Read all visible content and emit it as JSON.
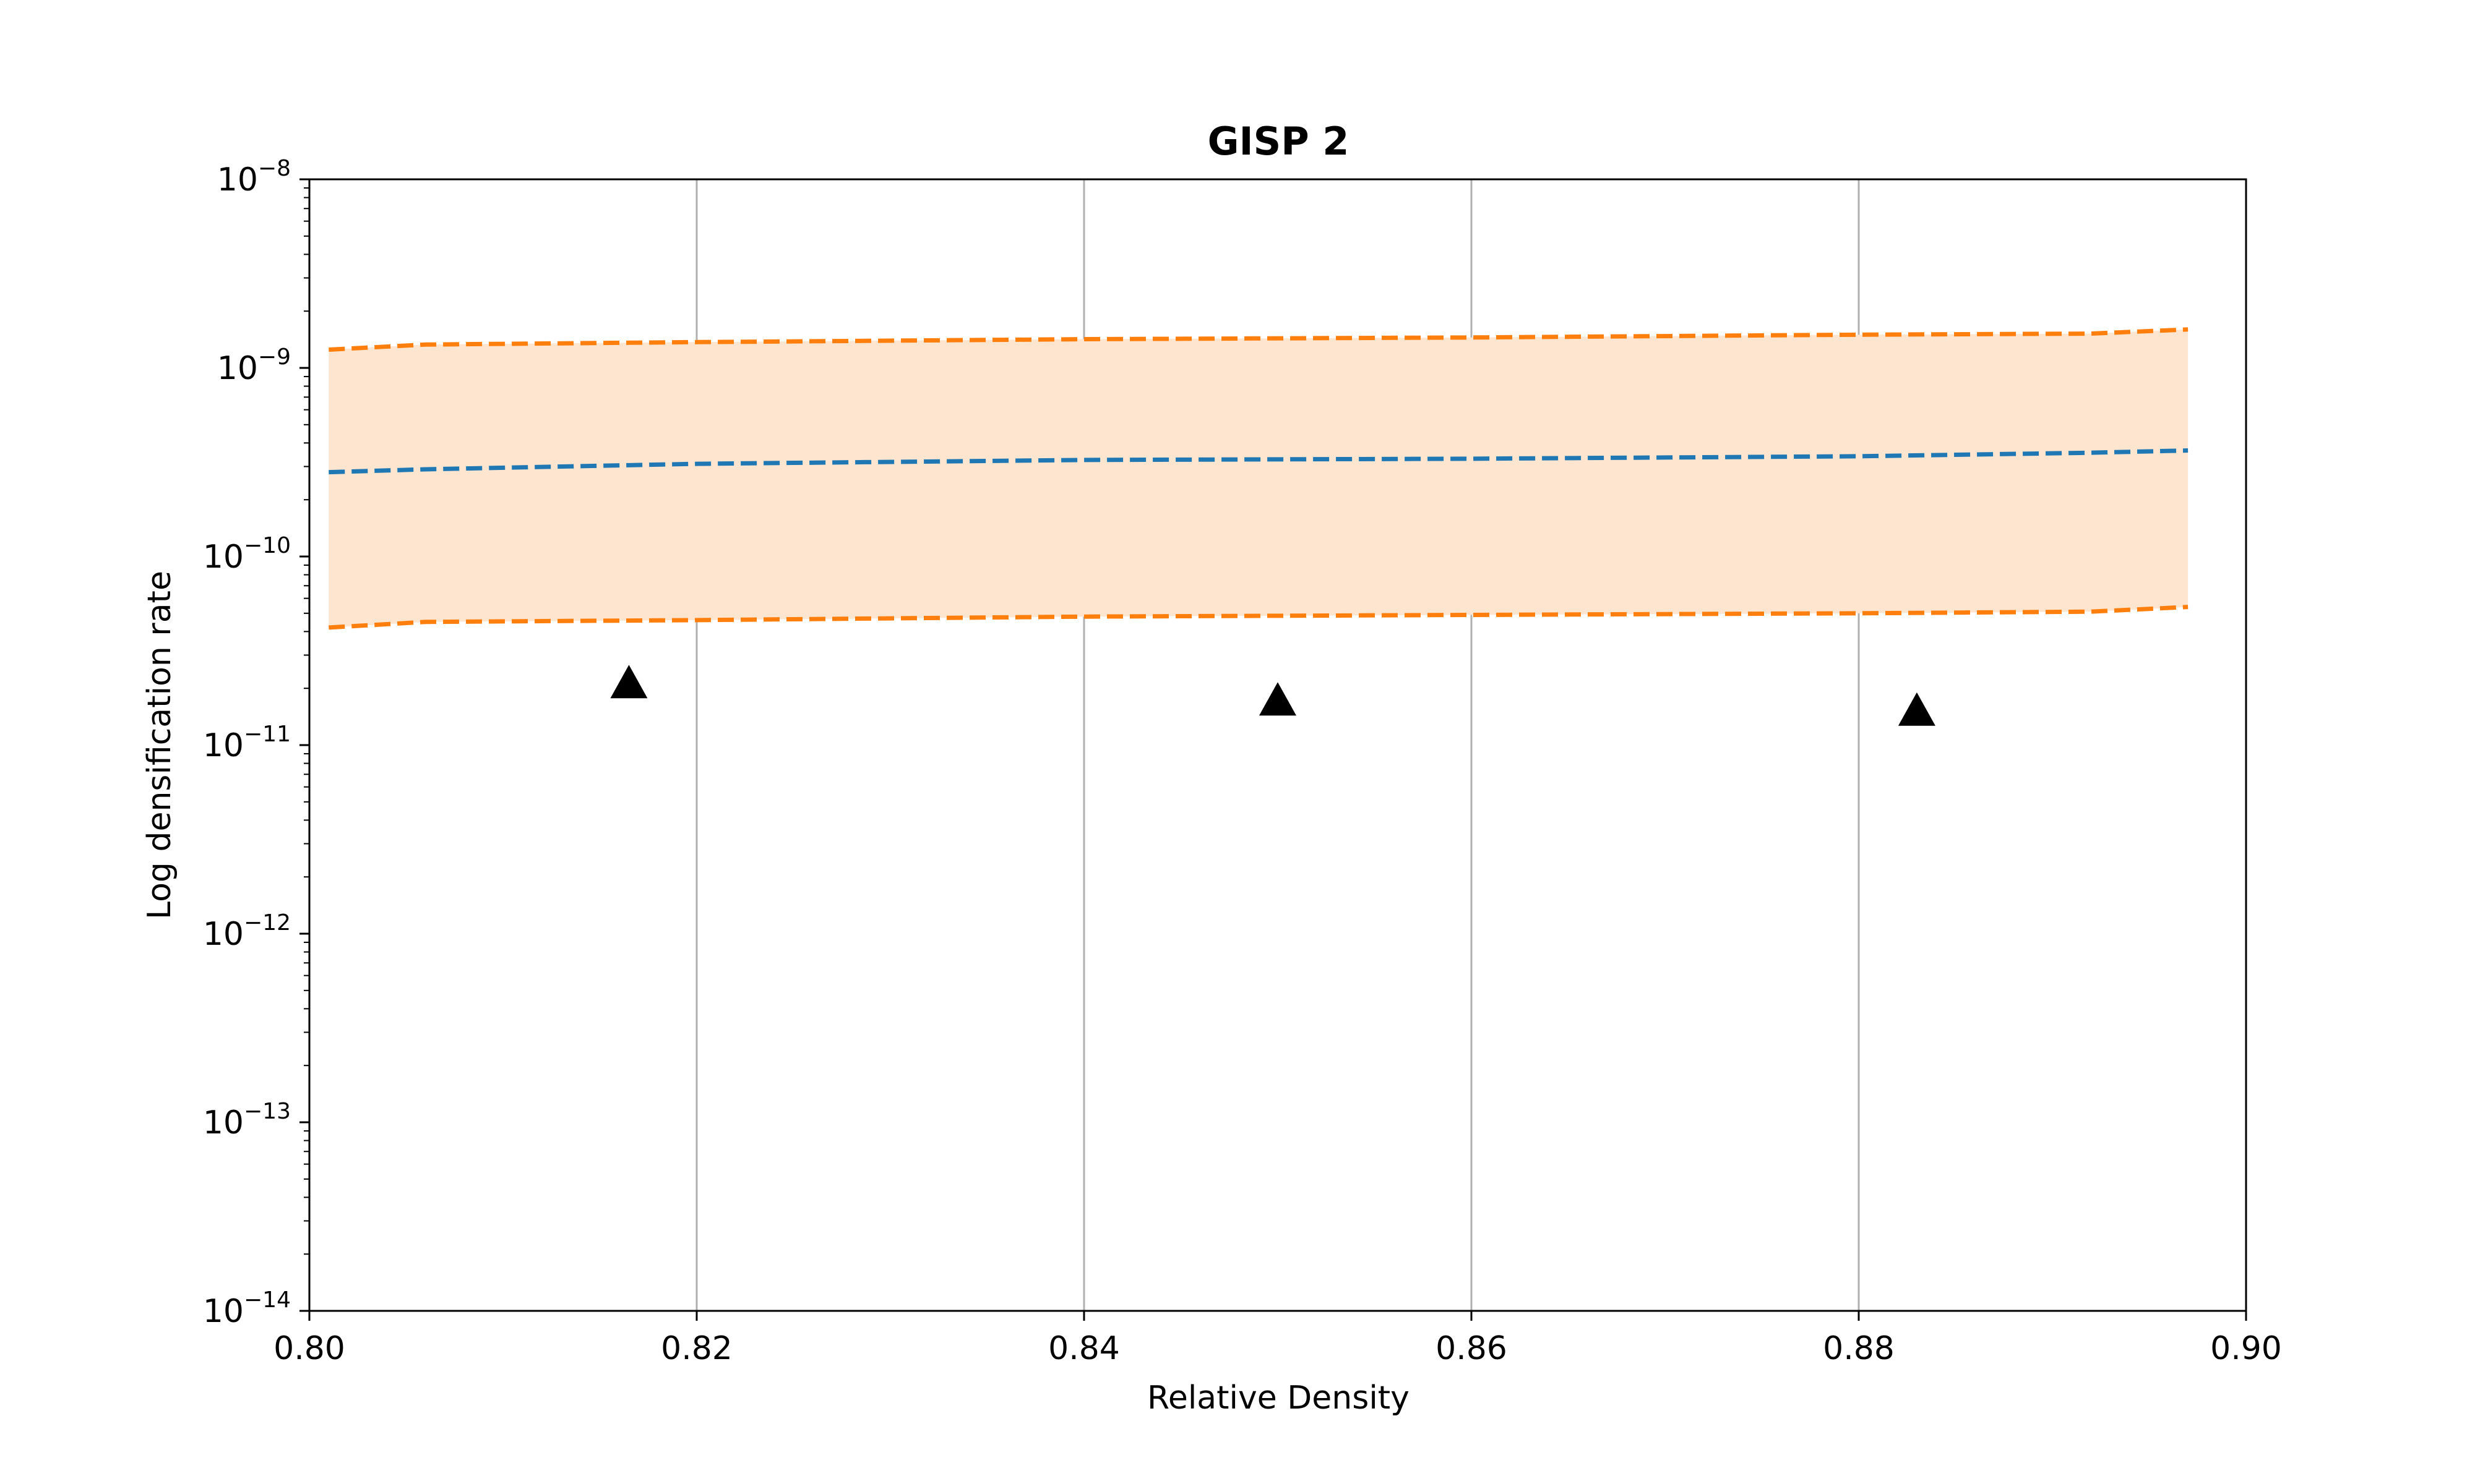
{
  "chart_data": {
    "type": "line",
    "title": "GISP 2",
    "xlabel": "Relative Density",
    "ylabel": "Log densification rate",
    "xlim": [
      0.8,
      0.9
    ],
    "ylim": [
      1e-14,
      1e-08
    ],
    "yscale": "log",
    "grid": "vertical",
    "x_ticks": [
      {
        "value": 0.8,
        "label": "0.80"
      },
      {
        "value": 0.82,
        "label": "0.82"
      },
      {
        "value": 0.84,
        "label": "0.84"
      },
      {
        "value": 0.86,
        "label": "0.86"
      },
      {
        "value": 0.88,
        "label": "0.88"
      },
      {
        "value": 0.9,
        "label": "0.90"
      }
    ],
    "y_ticks": [
      {
        "value": 1e-14,
        "base": "10",
        "exp": "−14"
      },
      {
        "value": 1e-13,
        "base": "10",
        "exp": "−13"
      },
      {
        "value": 1e-12,
        "base": "10",
        "exp": "−12"
      },
      {
        "value": 1e-11,
        "base": "10",
        "exp": "−11"
      },
      {
        "value": 1e-10,
        "base": "10",
        "exp": "−10"
      },
      {
        "value": 1e-09,
        "base": "10",
        "exp": "−9"
      },
      {
        "value": 1e-08,
        "base": "10",
        "exp": "−8"
      }
    ],
    "x": [
      0.801,
      0.806,
      0.82,
      0.84,
      0.86,
      0.88,
      0.892,
      0.897
    ],
    "series": [
      {
        "role": "mean",
        "style": "dashed",
        "color": "#1f77b4",
        "values": [
          2.8e-10,
          2.9e-10,
          3.1e-10,
          3.25e-10,
          3.3e-10,
          3.4e-10,
          3.55e-10,
          3.65e-10
        ]
      },
      {
        "role": "upper",
        "style": "dashed",
        "color": "#ff7f0e",
        "values": [
          1.25e-09,
          1.33e-09,
          1.37e-09,
          1.42e-09,
          1.45e-09,
          1.5e-09,
          1.52e-09,
          1.6e-09
        ]
      },
      {
        "role": "lower",
        "style": "dashed",
        "color": "#ff7f0e",
        "values": [
          4.2e-11,
          4.5e-11,
          4.6e-11,
          4.8e-11,
          4.9e-11,
          5e-11,
          5.1e-11,
          5.4e-11
        ]
      }
    ],
    "band_color": "#fde5cf",
    "markers": {
      "shape": "triangle",
      "color": "#000000",
      "points": [
        {
          "x": 0.8165,
          "y": 2.1e-11
        },
        {
          "x": 0.85,
          "y": 1.7e-11
        },
        {
          "x": 0.883,
          "y": 1.5e-11
        }
      ]
    }
  }
}
